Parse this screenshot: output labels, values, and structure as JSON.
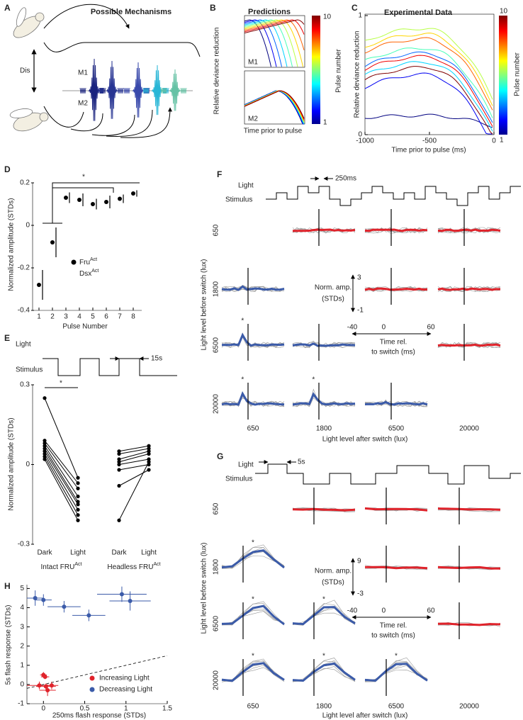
{
  "figure": {
    "panel_a": {
      "letter": "A",
      "title": "Possible Mechanisms",
      "distance_label": "Dis",
      "mechanism_labels": [
        "M1",
        "M2"
      ]
    },
    "panel_b": {
      "letter": "B",
      "title": "Predictions",
      "ylabel": "Relative deviance reduction",
      "xlabel": "Time prior to pulse",
      "mechanism_labels": [
        "M1",
        "M2"
      ],
      "colorbar_label": "Pulse number",
      "colorbar_ticks": [
        10,
        1
      ]
    },
    "panel_c": {
      "letter": "C",
      "title": "Experimental Data",
      "ylabel": "Relative deviance reduction",
      "xlabel": "Time prior to pulse (ms)",
      "xlim": [
        -1000,
        0
      ],
      "xticks": [
        -1000,
        -500,
        0
      ],
      "ylim": [
        0,
        1
      ],
      "yticks": [
        1,
        0
      ],
      "colorbar_label": "Pulse number",
      "colorbar_ticks": [
        10,
        1
      ]
    },
    "panel_f": {
      "letter": "F",
      "stimulus_label": [
        "Light",
        "Stimulus"
      ],
      "period_label": "250ms",
      "light_levels": [
        "650",
        "1800",
        "6500",
        "20000"
      ],
      "ylabel": "Light level before switch (lux)",
      "xlabel": "Light level after switch (lux)",
      "scale_label": [
        "Norm. amp.",
        "(STDs)"
      ],
      "scale_ticks": [
        3,
        -1
      ],
      "time_ticks": [
        -40,
        0,
        60
      ],
      "time_label": [
        "Time rel.",
        "to switch (ms)"
      ],
      "annotation": "*"
    },
    "panel_g": {
      "letter": "G",
      "stimulus_label": [
        "Light",
        "Stimulus"
      ],
      "period_label": "5s",
      "light_levels": [
        "650",
        "1800",
        "6500",
        "20000"
      ],
      "ylabel": "Light level before switch (lux)",
      "xlabel": "Light level after switch (lux)",
      "scale_label": [
        "Norm. amp.",
        "(STDs)"
      ],
      "scale_ticks": [
        9,
        -3
      ],
      "time_ticks": [
        -40,
        0,
        60
      ],
      "time_label": [
        "Time rel.",
        "to switch (ms)"
      ],
      "annotation": "*"
    }
  },
  "chart_data": [
    {
      "type": "errorbar",
      "letter": "D",
      "ylabel": "Normalized amplitude (STDs)",
      "xlabel": "Pulse Number",
      "x": [
        1,
        2,
        3,
        4,
        5,
        6,
        7,
        8
      ],
      "values": [
        -0.28,
        -0.08,
        0.13,
        0.12,
        0.1,
        0.11,
        0.125,
        0.15
      ],
      "errors": [
        0.07,
        0.07,
        0.025,
        0.03,
        0.025,
        0.03,
        0.02,
        0.015
      ],
      "ylim": [
        -0.4,
        0.2
      ],
      "yticks": [
        0.2,
        0,
        -0.2,
        -0.4
      ],
      "legend": [
        {
          "name": "Fru",
          "superscript": "Act",
          "color": "#000000"
        },
        {
          "name": "Dsx",
          "superscript": "Act",
          "color": "#ffffff"
        }
      ],
      "annotation": "*"
    },
    {
      "type": "paired",
      "letter": "E",
      "ylabel": "Normalized amplitude (STDs)",
      "stimulus_label": [
        "Light",
        "Stimulus"
      ],
      "period_label": "15s",
      "categories": [
        "Dark",
        "Light",
        "Dark",
        "Light"
      ],
      "groups": [
        {
          "label": "Intact FRU",
          "label_superscript": "Act",
          "dark": [
            0.25,
            0.09,
            0.08,
            0.07,
            0.06,
            0.05,
            0.04,
            0.03,
            0.02
          ],
          "light": [
            -0.05,
            -0.07,
            -0.09,
            -0.12,
            -0.14,
            -0.15,
            -0.17,
            -0.19,
            -0.21
          ]
        },
        {
          "label": "Headless FRU",
          "label_superscript": "Act",
          "dark": [
            0.05,
            0.04,
            0.02,
            0.01,
            0,
            -0.02,
            -0.08,
            -0.21
          ],
          "light": [
            0.07,
            0.06,
            0.05,
            0.04,
            0.02,
            0,
            -0.02,
            0.01
          ]
        }
      ],
      "ylim": [
        -0.3,
        0.3
      ],
      "yticks": [
        0.3,
        0,
        -0.3
      ],
      "annotation": "*"
    },
    {
      "type": "scatter",
      "letter": "H",
      "xlabel": "250ms flash response (STDs)",
      "ylabel": "5s flash response (STDs)",
      "xlim": [
        -0.2,
        1.5
      ],
      "xticks": [
        0,
        0.5,
        1,
        1.5
      ],
      "ylim": [
        -1,
        5.2
      ],
      "yticks": [
        5,
        4,
        3,
        2,
        1,
        0,
        -1
      ],
      "series": [
        {
          "name": "Increasing Light",
          "color": "#e0232b",
          "x": [
            0,
            0.02,
            -0.05,
            0.05,
            0.1,
            0.03
          ],
          "values": [
            0.5,
            0.4,
            -0.05,
            -0.3,
            -0.05,
            -0.1
          ],
          "xerr": [
            0.04,
            0.05,
            0.15,
            0.1,
            0.08,
            0.12
          ],
          "yerr": [
            0.15,
            0.12,
            0.2,
            0.3,
            0.2,
            0.15
          ]
        },
        {
          "name": "Decreasing Light",
          "color": "#3b5ba9",
          "x": [
            -0.1,
            0,
            0.25,
            0.55,
            0.95,
            1.05
          ],
          "values": [
            4.5,
            4.4,
            4.05,
            3.6,
            4.7,
            4.35
          ],
          "xerr": [
            0.1,
            0.1,
            0.2,
            0.2,
            0.3,
            0.25
          ],
          "yerr": [
            0.4,
            0.3,
            0.3,
            0.3,
            0.4,
            0.5
          ]
        }
      ]
    }
  ]
}
